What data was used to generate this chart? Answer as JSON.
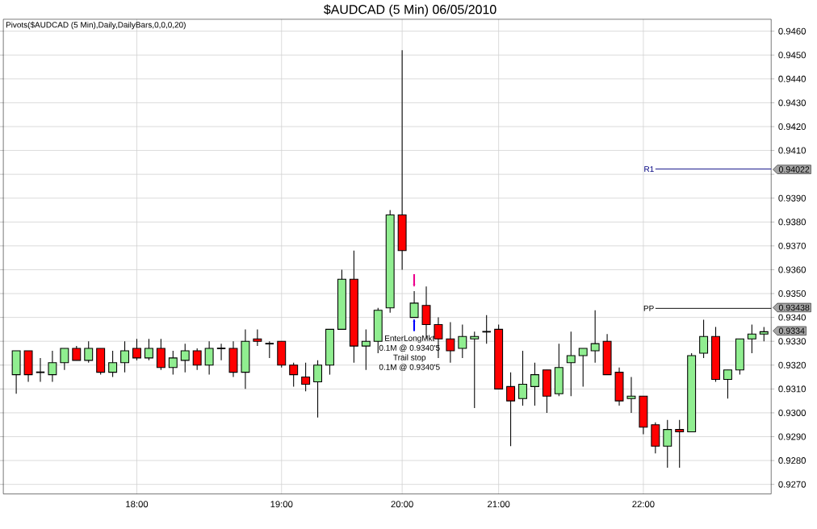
{
  "chart_data": {
    "type": "candlestick",
    "title": "$AUDCAD (5 Min)  06/05/2010",
    "subtitle": "Pivots($AUDCAD (5 Min),Daily,DailyBars,0,0,0,20)",
    "categories": [
      null,
      null,
      null,
      null,
      null,
      null,
      null,
      null,
      null,
      null,
      "18:00",
      null,
      null,
      null,
      null,
      null,
      null,
      null,
      null,
      null,
      null,
      null,
      "19:00",
      null,
      null,
      null,
      null,
      null,
      null,
      null,
      null,
      null,
      "20:00",
      null,
      null,
      null,
      null,
      null,
      null,
      null,
      "21:00",
      null,
      null,
      null,
      null,
      null,
      null,
      null,
      null,
      null,
      null,
      null,
      "22:00",
      null,
      null,
      null,
      null,
      null,
      null,
      null,
      null,
      null,
      null
    ],
    "ohlc": [
      [
        0.9316,
        0.9326,
        0.9308,
        0.9326
      ],
      [
        0.9326,
        0.9326,
        0.9313,
        0.9316
      ],
      [
        0.9317,
        0.9323,
        0.9313,
        0.9317
      ],
      [
        0.9316,
        0.9326,
        0.9313,
        0.9321
      ],
      [
        0.9321,
        0.9327,
        0.9318,
        0.9327
      ],
      [
        0.9327,
        0.9328,
        0.9322,
        0.9322
      ],
      [
        0.9322,
        0.933,
        0.9321,
        0.9327
      ],
      [
        0.9327,
        0.9327,
        0.9316,
        0.9317
      ],
      [
        0.9317,
        0.9326,
        0.9315,
        0.9321
      ],
      [
        0.9321,
        0.933,
        0.9317,
        0.9326
      ],
      [
        0.9327,
        0.9331,
        0.9322,
        0.9323
      ],
      [
        0.9323,
        0.9331,
        0.9322,
        0.9327
      ],
      [
        0.9327,
        0.9331,
        0.9318,
        0.9319
      ],
      [
        0.9319,
        0.9326,
        0.9316,
        0.9323
      ],
      [
        0.9322,
        0.9329,
        0.9317,
        0.9326
      ],
      [
        0.9326,
        0.9327,
        0.9318,
        0.932
      ],
      [
        0.932,
        0.933,
        0.9316,
        0.9327
      ],
      [
        0.9327,
        0.9329,
        0.9322,
        0.9327
      ],
      [
        0.9327,
        0.933,
        0.9315,
        0.9317
      ],
      [
        0.9317,
        0.9335,
        0.931,
        0.933
      ],
      [
        0.9331,
        0.9335,
        0.9328,
        0.933
      ],
      [
        0.9329,
        0.933,
        0.9323,
        0.9329
      ],
      [
        0.933,
        0.933,
        0.9319,
        0.932
      ],
      [
        0.932,
        0.9321,
        0.9311,
        0.9316
      ],
      [
        0.9315,
        0.9321,
        0.9309,
        0.9312
      ],
      [
        0.9313,
        0.9322,
        0.9298,
        0.932
      ],
      [
        0.932,
        0.9335,
        0.9316,
        0.9335
      ],
      [
        0.9335,
        0.936,
        0.9335,
        0.9356
      ],
      [
        0.9356,
        0.9368,
        0.9321,
        0.9328
      ],
      [
        0.9328,
        0.9335,
        0.9318,
        0.933
      ],
      [
        0.933,
        0.9344,
        0.9325,
        0.9343
      ],
      [
        0.9344,
        0.9385,
        0.9342,
        0.9383
      ],
      [
        0.9383,
        0.9452,
        0.936,
        0.9368
      ],
      [
        0.934,
        0.9351,
        0.934,
        0.9346
      ],
      [
        0.9345,
        0.9353,
        0.9331,
        0.9337
      ],
      [
        0.9337,
        0.934,
        0.9323,
        0.9331
      ],
      [
        0.9331,
        0.9338,
        0.9321,
        0.9326
      ],
      [
        0.9327,
        0.9337,
        0.9323,
        0.9332
      ],
      [
        0.9331,
        0.9334,
        0.9302,
        0.9332
      ],
      [
        0.9334,
        0.9341,
        0.9329,
        0.9334
      ],
      [
        0.9335,
        0.9337,
        0.931,
        0.931
      ],
      [
        0.9311,
        0.9317,
        0.9286,
        0.9305
      ],
      [
        0.9306,
        0.9326,
        0.9303,
        0.9312
      ],
      [
        0.9311,
        0.9321,
        0.9303,
        0.9316
      ],
      [
        0.9318,
        0.9318,
        0.93,
        0.9307
      ],
      [
        0.9308,
        0.9329,
        0.9307,
        0.9319
      ],
      [
        0.9321,
        0.9334,
        0.9307,
        0.9324
      ],
      [
        0.9324,
        0.9327,
        0.9311,
        0.9327
      ],
      [
        0.9326,
        0.9343,
        0.9321,
        0.9329
      ],
      [
        0.933,
        0.9333,
        0.9316,
        0.9316
      ],
      [
        0.9317,
        0.9319,
        0.9303,
        0.9305
      ],
      [
        0.9306,
        0.9315,
        0.93,
        0.9307
      ],
      [
        0.9307,
        0.9307,
        0.9291,
        0.9294
      ],
      [
        0.9295,
        0.9296,
        0.9283,
        0.9286
      ],
      [
        0.9286,
        0.9297,
        0.9277,
        0.9293
      ],
      [
        0.9293,
        0.9297,
        0.9277,
        0.9292
      ],
      [
        0.9292,
        0.9325,
        0.9292,
        0.9324
      ],
      [
        0.9325,
        0.9339,
        0.9323,
        0.9332
      ],
      [
        0.9332,
        0.9336,
        0.9313,
        0.9314
      ],
      [
        0.9314,
        0.9318,
        0.9306,
        0.9318
      ],
      [
        0.9318,
        0.9331,
        0.9316,
        0.9331
      ],
      [
        0.9331,
        0.9337,
        0.9325,
        0.9333
      ],
      [
        0.9333,
        0.9336,
        0.933,
        0.9334
      ]
    ],
    "colors": [
      "#90ee90",
      "#ff0000",
      "#000000",
      "#90ee90",
      "#90ee90",
      "#ff0000",
      "#90ee90",
      "#ff0000",
      "#90ee90",
      "#90ee90",
      "#ff0000",
      "#90ee90",
      "#ff0000",
      "#90ee90",
      "#90ee90",
      "#ff0000",
      "#90ee90",
      "#000000",
      "#ff0000",
      "#90ee90",
      "#ff0000",
      "#000000",
      "#ff0000",
      "#ff0000",
      "#ff0000",
      "#90ee90",
      "#90ee90",
      "#90ee90",
      "#ff0000",
      "#90ee90",
      "#90ee90",
      "#90ee90",
      "#ff0000",
      "#90ee90",
      "#ff0000",
      "#ff0000",
      "#ff0000",
      "#90ee90",
      "#90ee90",
      "#000000",
      "#ff0000",
      "#ff0000",
      "#90ee90",
      "#90ee90",
      "#ff0000",
      "#90ee90",
      "#90ee90",
      "#90ee90",
      "#90ee90",
      "#ff0000",
      "#ff0000",
      "#90ee90",
      "#ff0000",
      "#ff0000",
      "#90ee90",
      "#ff0000",
      "#90ee90",
      "#90ee90",
      "#ff0000",
      "#90ee90",
      "#90ee90",
      "#90ee90",
      "#90ee90"
    ],
    "ylim": [
      0.9266,
      0.9465
    ],
    "yticks": [
      {
        "value": 0.927,
        "label": "0.9270"
      },
      {
        "value": 0.928,
        "label": "0.9280"
      },
      {
        "value": 0.929,
        "label": "0.9290"
      },
      {
        "value": 0.93,
        "label": "0.9300"
      },
      {
        "value": 0.931,
        "label": "0.9310"
      },
      {
        "value": 0.932,
        "label": "0.9320"
      },
      {
        "value": 0.933,
        "label": "0.9330"
      },
      {
        "value": 0.934,
        "label": "0.9340"
      },
      {
        "value": 0.935,
        "label": "0.9350"
      },
      {
        "value": 0.936,
        "label": "0.9360"
      },
      {
        "value": 0.937,
        "label": "0.9370"
      },
      {
        "value": 0.938,
        "label": "0.9380"
      },
      {
        "value": 0.939,
        "label": "0.9390"
      },
      {
        "value": 0.94,
        "label": null
      },
      {
        "value": 0.941,
        "label": "0.9410"
      },
      {
        "value": 0.942,
        "label": "0.9420"
      },
      {
        "value": 0.943,
        "label": "0.9430"
      },
      {
        "value": 0.944,
        "label": "0.9440"
      },
      {
        "value": 0.945,
        "label": "0.9450"
      },
      {
        "value": 0.946,
        "label": "0.9460"
      }
    ],
    "grid": true,
    "ref_lines": [
      {
        "axis": "y",
        "value": 0.94022,
        "label": "R1",
        "color": "#000080"
      },
      {
        "axis": "y",
        "value": 0.93438,
        "label": "PP",
        "color": "#000000"
      }
    ],
    "annotations": [
      "EnterLongMkt",
      "0.1M @ 0.9340'5",
      "Trail stop",
      "0.1M @ 0.9340'5",
      "0.94022",
      "0.93438",
      "0.9334"
    ]
  }
}
